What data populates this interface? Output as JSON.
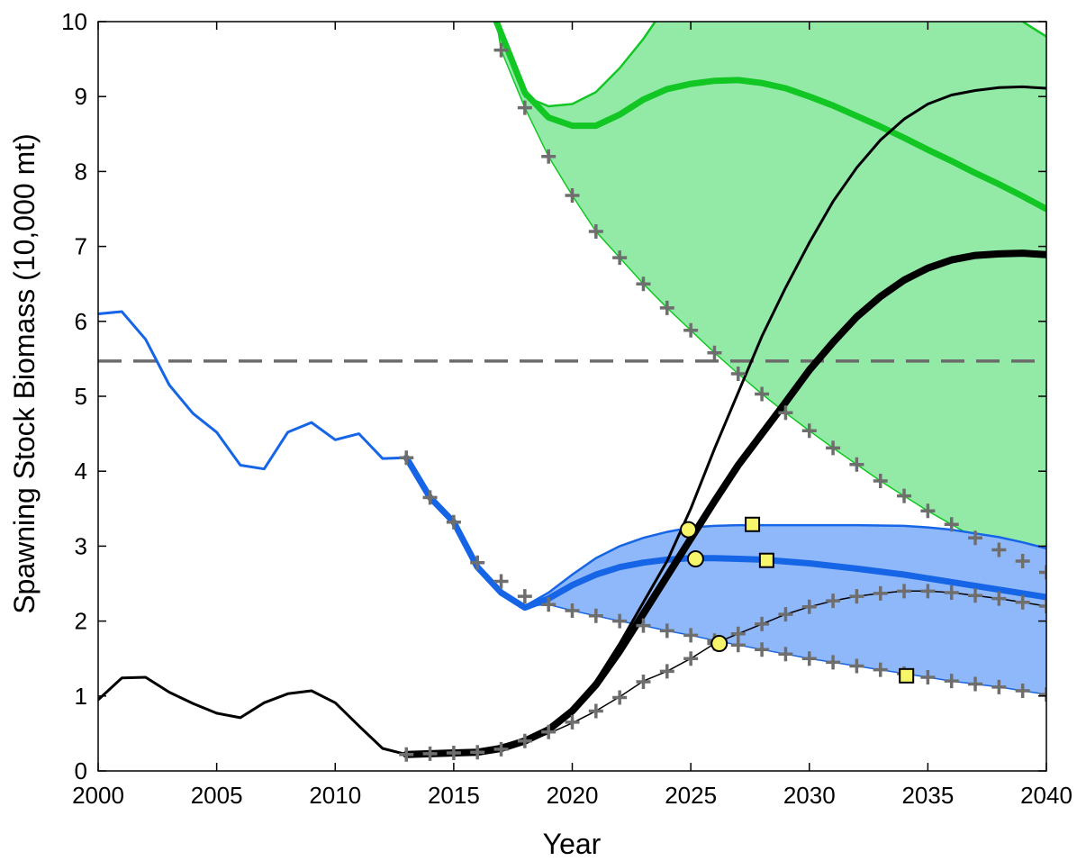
{
  "chart_data": {
    "type": "line",
    "xlabel": "Year",
    "ylabel": "Spawning Stock Biomass (10,000 mt)",
    "xlim": [
      2000,
      2040
    ],
    "ylim": [
      0,
      10
    ],
    "xticks": [
      2000,
      2005,
      2010,
      2015,
      2020,
      2025,
      2030,
      2035,
      2040
    ],
    "yticks": [
      0,
      1,
      2,
      3,
      4,
      5,
      6,
      7,
      8,
      9,
      10
    ],
    "grid": false,
    "legend": "none",
    "reference_line": {
      "y": 5.47,
      "style": "dashed",
      "color": "#6b6b6b"
    },
    "colors": {
      "green_line": "#12c624",
      "green_fill": "#93eaa6",
      "blue_line": "#1565e6",
      "blue_fill": "#8fb8fb",
      "black_line": "#000000",
      "marker_plus": "#6e6e6e",
      "marker_face": "#f7f56a"
    },
    "bands": [
      {
        "color": "green",
        "upper": [
          [
            2016.8,
            10.0
          ],
          [
            2018,
            9.0
          ],
          [
            2019,
            8.87
          ],
          [
            2020,
            8.9
          ],
          [
            2021,
            9.06
          ],
          [
            2022,
            9.38
          ],
          [
            2023,
            9.77
          ],
          [
            2023.5,
            10.0
          ]
        ],
        "upper2": [
          [
            2039,
            10.0
          ],
          [
            2040,
            9.8
          ]
        ],
        "lower": [
          [
            2016.8,
            10.0
          ],
          [
            2017,
            9.62
          ],
          [
            2018,
            8.85
          ],
          [
            2019,
            8.2
          ],
          [
            2020,
            7.68
          ],
          [
            2021,
            7.2
          ],
          [
            2022,
            6.85
          ],
          [
            2023,
            6.5
          ],
          [
            2024,
            6.18
          ],
          [
            2025,
            5.88
          ],
          [
            2026,
            5.58
          ],
          [
            2027,
            5.3
          ],
          [
            2028,
            5.03
          ],
          [
            2029,
            4.78
          ],
          [
            2030,
            4.54
          ],
          [
            2031,
            4.31
          ],
          [
            2032,
            4.09
          ],
          [
            2033,
            3.87
          ],
          [
            2034,
            3.67
          ],
          [
            2035,
            3.47
          ],
          [
            2036,
            3.29
          ],
          [
            2037,
            3.11
          ],
          [
            2038,
            2.95
          ],
          [
            2039,
            2.8
          ],
          [
            2040,
            2.65
          ]
        ]
      },
      {
        "color": "blue",
        "upper": [
          [
            2018,
            2.2
          ],
          [
            2019,
            2.38
          ],
          [
            2020,
            2.62
          ],
          [
            2021,
            2.84
          ],
          [
            2022,
            3.0
          ],
          [
            2023,
            3.11
          ],
          [
            2024,
            3.19
          ],
          [
            2025,
            3.25
          ],
          [
            2026,
            3.27
          ],
          [
            2027,
            3.28
          ],
          [
            2028,
            3.28
          ],
          [
            2030,
            3.28
          ],
          [
            2032,
            3.28
          ],
          [
            2034,
            3.27
          ],
          [
            2035,
            3.25
          ],
          [
            2036,
            3.22
          ],
          [
            2037,
            3.17
          ],
          [
            2038,
            3.12
          ],
          [
            2039,
            3.05
          ],
          [
            2040,
            2.97
          ]
        ],
        "lower": [
          [
            2018,
            2.2
          ],
          [
            2019,
            2.22
          ],
          [
            2020,
            2.14
          ],
          [
            2021,
            2.07
          ],
          [
            2022,
            2.0
          ],
          [
            2023,
            1.94
          ],
          [
            2024,
            1.87
          ],
          [
            2025,
            1.81
          ],
          [
            2026,
            1.74
          ],
          [
            2027,
            1.68
          ],
          [
            2028,
            1.62
          ],
          [
            2029,
            1.56
          ],
          [
            2030,
            1.5
          ],
          [
            2031,
            1.45
          ],
          [
            2032,
            1.4
          ],
          [
            2033,
            1.35
          ],
          [
            2034,
            1.3
          ],
          [
            2035,
            1.25
          ],
          [
            2036,
            1.2
          ],
          [
            2037,
            1.16
          ],
          [
            2038,
            1.12
          ],
          [
            2039,
            1.07
          ],
          [
            2040,
            1.02
          ]
        ]
      }
    ],
    "series": [
      {
        "color": "blue",
        "width": 3,
        "values": [
          [
            2000,
            6.1
          ],
          [
            2001,
            6.13
          ],
          [
            2002,
            5.76
          ],
          [
            2003,
            5.15
          ],
          [
            2004,
            4.77
          ],
          [
            2005,
            4.52
          ],
          [
            2006,
            4.08
          ],
          [
            2007,
            4.03
          ],
          [
            2008,
            4.52
          ],
          [
            2009,
            4.65
          ],
          [
            2010,
            4.42
          ],
          [
            2011,
            4.5
          ],
          [
            2012,
            4.17
          ],
          [
            2013,
            4.18
          ]
        ]
      },
      {
        "color": "blue",
        "width": 7,
        "values": [
          [
            2013,
            4.18
          ],
          [
            2014,
            3.65
          ],
          [
            2015,
            3.32
          ],
          [
            2016,
            2.72
          ],
          [
            2017,
            2.38
          ],
          [
            2018,
            2.18
          ],
          [
            2019,
            2.3
          ],
          [
            2020,
            2.48
          ],
          [
            2021,
            2.62
          ],
          [
            2022,
            2.72
          ],
          [
            2023,
            2.78
          ],
          [
            2024,
            2.82
          ],
          [
            2025,
            2.84
          ],
          [
            2026,
            2.84
          ],
          [
            2027,
            2.83
          ],
          [
            2028,
            2.82
          ],
          [
            2030,
            2.77
          ],
          [
            2032,
            2.7
          ],
          [
            2034,
            2.62
          ],
          [
            2036,
            2.52
          ],
          [
            2038,
            2.42
          ],
          [
            2040,
            2.32
          ]
        ]
      },
      {
        "color": "green",
        "width": 7,
        "values": [
          [
            2016.8,
            10.0
          ],
          [
            2018,
            9.05
          ],
          [
            2019,
            8.72
          ],
          [
            2020,
            8.61
          ],
          [
            2021,
            8.61
          ],
          [
            2022,
            8.76
          ],
          [
            2023,
            8.96
          ],
          [
            2024,
            9.1
          ],
          [
            2025,
            9.17
          ],
          [
            2026,
            9.21
          ],
          [
            2027,
            9.22
          ],
          [
            2028,
            9.18
          ],
          [
            2029,
            9.11
          ],
          [
            2030,
            9.0
          ],
          [
            2031,
            8.88
          ],
          [
            2032,
            8.74
          ],
          [
            2033,
            8.6
          ],
          [
            2034,
            8.45
          ],
          [
            2035,
            8.29
          ],
          [
            2036,
            8.14
          ],
          [
            2037,
            7.98
          ],
          [
            2038,
            7.83
          ],
          [
            2039,
            7.67
          ],
          [
            2040,
            7.5
          ]
        ]
      },
      {
        "color": "black",
        "width": 3,
        "values": [
          [
            2000,
            0.95
          ],
          [
            2001,
            1.24
          ],
          [
            2002,
            1.25
          ],
          [
            2003,
            1.05
          ],
          [
            2004,
            0.9
          ],
          [
            2005,
            0.77
          ],
          [
            2006,
            0.71
          ],
          [
            2007,
            0.91
          ],
          [
            2008,
            1.03
          ],
          [
            2009,
            1.07
          ],
          [
            2010,
            0.91
          ],
          [
            2011,
            0.6
          ],
          [
            2012,
            0.3
          ],
          [
            2013,
            0.22
          ]
        ]
      },
      {
        "color": "black",
        "width": 8,
        "values": [
          [
            2013,
            0.22
          ],
          [
            2014,
            0.23
          ],
          [
            2015,
            0.24
          ],
          [
            2016,
            0.25
          ],
          [
            2017,
            0.3
          ],
          [
            2018,
            0.4
          ],
          [
            2019,
            0.55
          ],
          [
            2020,
            0.8
          ],
          [
            2021,
            1.15
          ],
          [
            2022,
            1.6
          ],
          [
            2023,
            2.1
          ],
          [
            2024,
            2.6
          ],
          [
            2025,
            3.1
          ],
          [
            2026,
            3.6
          ],
          [
            2027,
            4.08
          ],
          [
            2028,
            4.5
          ],
          [
            2029,
            4.92
          ],
          [
            2030,
            5.35
          ],
          [
            2031,
            5.72
          ],
          [
            2032,
            6.06
          ],
          [
            2033,
            6.33
          ],
          [
            2034,
            6.55
          ],
          [
            2035,
            6.71
          ],
          [
            2036,
            6.82
          ],
          [
            2037,
            6.88
          ],
          [
            2038,
            6.9
          ],
          [
            2039,
            6.91
          ],
          [
            2040,
            6.89
          ]
        ]
      },
      {
        "color": "black",
        "width": 3,
        "values": [
          [
            2013,
            0.22
          ],
          [
            2016,
            0.25
          ],
          [
            2018,
            0.42
          ],
          [
            2019,
            0.57
          ],
          [
            2020,
            0.82
          ],
          [
            2021,
            1.2
          ],
          [
            2022,
            1.7
          ],
          [
            2023,
            2.25
          ],
          [
            2024,
            2.8
          ],
          [
            2025,
            3.5
          ],
          [
            2026,
            4.3
          ],
          [
            2027,
            5.05
          ],
          [
            2028,
            5.8
          ],
          [
            2029,
            6.45
          ],
          [
            2030,
            7.05
          ],
          [
            2031,
            7.6
          ],
          [
            2032,
            8.05
          ],
          [
            2033,
            8.42
          ],
          [
            2034,
            8.7
          ],
          [
            2035,
            8.9
          ],
          [
            2036,
            9.02
          ],
          [
            2037,
            9.08
          ],
          [
            2038,
            9.12
          ],
          [
            2039,
            9.13
          ],
          [
            2040,
            9.11
          ]
        ]
      },
      {
        "color": "black",
        "width": 1.5,
        "values": [
          [
            2013,
            0.22
          ],
          [
            2014,
            0.23
          ],
          [
            2015,
            0.24
          ],
          [
            2016,
            0.25
          ],
          [
            2017,
            0.28
          ],
          [
            2018,
            0.38
          ],
          [
            2019,
            0.5
          ],
          [
            2020,
            0.64
          ],
          [
            2021,
            0.8
          ],
          [
            2022,
            0.99
          ],
          [
            2023,
            1.2
          ],
          [
            2024,
            1.33
          ],
          [
            2025,
            1.5
          ],
          [
            2026,
            1.7
          ],
          [
            2027,
            1.83
          ],
          [
            2028,
            1.96
          ],
          [
            2029,
            2.09
          ],
          [
            2030,
            2.19
          ],
          [
            2031,
            2.27
          ],
          [
            2032,
            2.33
          ],
          [
            2033,
            2.37
          ],
          [
            2034,
            2.4
          ],
          [
            2035,
            2.4
          ],
          [
            2036,
            2.38
          ],
          [
            2037,
            2.34
          ],
          [
            2038,
            2.3
          ],
          [
            2039,
            2.25
          ],
          [
            2040,
            2.2
          ]
        ]
      }
    ],
    "plus_markers": [
      [
        2017,
        9.62
      ],
      [
        2018,
        8.85
      ],
      [
        2019,
        8.2
      ],
      [
        2020,
        7.68
      ],
      [
        2021,
        7.2
      ],
      [
        2022,
        6.85
      ],
      [
        2023,
        6.5
      ],
      [
        2024,
        6.18
      ],
      [
        2025,
        5.88
      ],
      [
        2026,
        5.58
      ],
      [
        2027,
        5.3
      ],
      [
        2028,
        5.03
      ],
      [
        2029,
        4.78
      ],
      [
        2030,
        4.54
      ],
      [
        2031,
        4.31
      ],
      [
        2032,
        4.09
      ],
      [
        2033,
        3.87
      ],
      [
        2034,
        3.67
      ],
      [
        2035,
        3.47
      ],
      [
        2036,
        3.29
      ],
      [
        2037,
        3.11
      ],
      [
        2038,
        2.95
      ],
      [
        2039,
        2.8
      ],
      [
        2040,
        2.65
      ],
      [
        2013,
        4.18
      ],
      [
        2014,
        3.65
      ],
      [
        2015,
        3.32
      ],
      [
        2016,
        2.78
      ],
      [
        2017,
        2.53
      ],
      [
        2018,
        2.33
      ],
      [
        2019,
        2.22
      ],
      [
        2020,
        2.14
      ],
      [
        2021,
        2.07
      ],
      [
        2022,
        2.0
      ],
      [
        2023,
        1.94
      ],
      [
        2024,
        1.87
      ],
      [
        2025,
        1.81
      ],
      [
        2026,
        1.74
      ],
      [
        2027,
        1.68
      ],
      [
        2028,
        1.62
      ],
      [
        2029,
        1.56
      ],
      [
        2030,
        1.5
      ],
      [
        2031,
        1.45
      ],
      [
        2032,
        1.4
      ],
      [
        2033,
        1.35
      ],
      [
        2034,
        1.3
      ],
      [
        2035,
        1.25
      ],
      [
        2036,
        1.2
      ],
      [
        2037,
        1.16
      ],
      [
        2038,
        1.12
      ],
      [
        2039,
        1.07
      ],
      [
        2040,
        1.02
      ],
      [
        2013,
        0.22
      ],
      [
        2014,
        0.23
      ],
      [
        2015,
        0.24
      ],
      [
        2016,
        0.25
      ],
      [
        2017,
        0.29
      ],
      [
        2018,
        0.4
      ],
      [
        2019,
        0.52
      ],
      [
        2020,
        0.65
      ],
      [
        2021,
        0.8
      ],
      [
        2022,
        0.98
      ],
      [
        2023,
        1.19
      ],
      [
        2024,
        1.33
      ],
      [
        2025,
        1.5
      ],
      [
        2026,
        1.7
      ],
      [
        2027,
        1.83
      ],
      [
        2028,
        1.96
      ],
      [
        2029,
        2.09
      ],
      [
        2030,
        2.19
      ],
      [
        2031,
        2.27
      ],
      [
        2032,
        2.33
      ],
      [
        2033,
        2.37
      ],
      [
        2034,
        2.4
      ],
      [
        2035,
        2.4
      ],
      [
        2036,
        2.38
      ],
      [
        2037,
        2.34
      ],
      [
        2038,
        2.3
      ],
      [
        2039,
        2.25
      ],
      [
        2040,
        2.2
      ]
    ],
    "circle_markers": [
      [
        2024.9,
        3.22
      ],
      [
        2025.2,
        2.83
      ],
      [
        2026.2,
        1.7
      ]
    ],
    "square_markers": [
      [
        2027.6,
        3.29
      ],
      [
        2028.2,
        2.81
      ],
      [
        2034.1,
        1.27
      ]
    ]
  }
}
